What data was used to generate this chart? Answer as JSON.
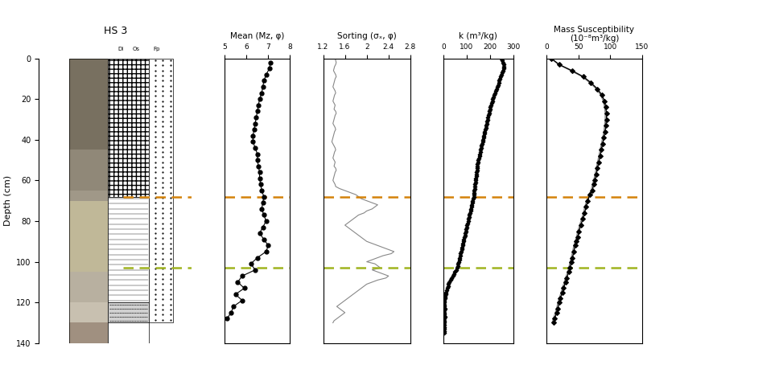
{
  "title": "HS 3",
  "depth_min": 0,
  "depth_max": 140,
  "orange_line_depth": 68,
  "green_line_depth": 103,
  "orange_color": "#D4820A",
  "green_color": "#A0B420",
  "mean_label": "Mean (Mz, φ)",
  "mean_xlim": [
    5,
    8
  ],
  "mean_xticks": [
    5,
    6,
    7,
    8
  ],
  "mean_data_depth": [
    2,
    5,
    8,
    11,
    14,
    17,
    20,
    23,
    26,
    29,
    32,
    35,
    38,
    41,
    44,
    47,
    50,
    53,
    56,
    59,
    62,
    65,
    68,
    71,
    74,
    77,
    80,
    83,
    86,
    89,
    92,
    95,
    98,
    101,
    104,
    107,
    110,
    113,
    116,
    119,
    122,
    125,
    128
  ],
  "mean_data_values": [
    7.1,
    7.05,
    6.9,
    6.8,
    6.75,
    6.7,
    6.6,
    6.55,
    6.5,
    6.45,
    6.4,
    6.35,
    6.3,
    6.3,
    6.4,
    6.5,
    6.5,
    6.55,
    6.6,
    6.6,
    6.65,
    6.7,
    6.8,
    6.75,
    6.7,
    6.8,
    6.9,
    6.75,
    6.6,
    6.8,
    7.0,
    6.9,
    6.5,
    6.2,
    6.4,
    5.8,
    5.6,
    5.9,
    5.5,
    5.8,
    5.4,
    5.3,
    5.1
  ],
  "sorting_label": "Sorting (σₓ, φ)",
  "sorting_xlim": [
    1.2,
    2.8
  ],
  "sorting_xticks": [
    1.6,
    2.0,
    2.4,
    2.8
  ],
  "sorting_xtick_labels": [
    "1.6",
    "2",
    "2.4",
    "2.8"
  ],
  "sorting_data_depth": [
    0,
    1,
    2,
    3,
    4,
    5,
    6,
    7,
    8,
    9,
    10,
    11,
    12,
    13,
    14,
    15,
    16,
    17,
    18,
    19,
    20,
    21,
    22,
    23,
    24,
    25,
    26,
    27,
    28,
    29,
    30,
    31,
    32,
    33,
    34,
    35,
    36,
    37,
    38,
    39,
    40,
    41,
    42,
    43,
    44,
    45,
    46,
    47,
    48,
    49,
    50,
    51,
    52,
    53,
    54,
    55,
    56,
    57,
    58,
    59,
    60,
    61,
    62,
    63,
    64,
    65,
    66,
    67,
    68,
    69,
    70,
    71,
    72,
    73,
    74,
    75,
    76,
    77,
    78,
    79,
    80,
    81,
    82,
    83,
    84,
    85,
    86,
    87,
    88,
    89,
    90,
    91,
    92,
    93,
    94,
    95,
    96,
    97,
    98,
    99,
    100,
    101,
    102,
    103,
    104,
    105,
    106,
    107,
    108,
    109,
    110,
    111,
    112,
    113,
    114,
    115,
    116,
    117,
    118,
    119,
    120,
    121,
    122,
    123,
    124,
    125,
    126,
    127,
    128,
    129,
    130
  ],
  "sorting_data_values": [
    1.42,
    1.43,
    1.44,
    1.43,
    1.41,
    1.4,
    1.39,
    1.41,
    1.43,
    1.44,
    1.42,
    1.41,
    1.4,
    1.39,
    1.38,
    1.4,
    1.42,
    1.43,
    1.41,
    1.4,
    1.39,
    1.38,
    1.4,
    1.42,
    1.41,
    1.4,
    1.43,
    1.44,
    1.42,
    1.41,
    1.4,
    1.39,
    1.38,
    1.4,
    1.42,
    1.43,
    1.41,
    1.4,
    1.39,
    1.38,
    1.37,
    1.36,
    1.38,
    1.4,
    1.42,
    1.43,
    1.41,
    1.4,
    1.39,
    1.38,
    1.4,
    1.42,
    1.41,
    1.4,
    1.43,
    1.44,
    1.42,
    1.41,
    1.4,
    1.39,
    1.38,
    1.4,
    1.42,
    1.43,
    1.5,
    1.6,
    1.7,
    1.8,
    1.85,
    1.9,
    2.0,
    2.1,
    2.2,
    2.15,
    2.1,
    2.0,
    1.95,
    1.85,
    1.8,
    1.75,
    1.7,
    1.65,
    1.6,
    1.65,
    1.7,
    1.75,
    1.8,
    1.85,
    1.9,
    1.95,
    2.0,
    2.1,
    2.2,
    2.3,
    2.4,
    2.5,
    2.45,
    2.3,
    2.2,
    2.1,
    2.0,
    2.15,
    2.2,
    2.25,
    2.1,
    2.2,
    2.3,
    2.4,
    2.35,
    2.2,
    2.1,
    2.0,
    1.95,
    1.9,
    1.85,
    1.8,
    1.75,
    1.7,
    1.65,
    1.6,
    1.55,
    1.5,
    1.45,
    1.5,
    1.55,
    1.6,
    1.55,
    1.5,
    1.45,
    1.4,
    1.38
  ],
  "k_label": "k (m³/kg)",
  "k_xlim": [
    0,
    300
  ],
  "k_xticks": [
    0,
    100,
    200,
    300
  ],
  "k_depth": [
    0,
    1,
    2,
    3,
    4,
    5,
    6,
    7,
    8,
    9,
    10,
    11,
    12,
    13,
    14,
    15,
    16,
    17,
    18,
    19,
    20,
    21,
    22,
    23,
    24,
    25,
    26,
    27,
    28,
    29,
    30,
    31,
    32,
    33,
    34,
    35,
    36,
    37,
    38,
    39,
    40,
    41,
    42,
    43,
    44,
    45,
    46,
    47,
    48,
    49,
    50,
    51,
    52,
    53,
    54,
    55,
    56,
    57,
    58,
    59,
    60,
    61,
    62,
    63,
    64,
    65,
    66,
    67,
    68,
    69,
    70,
    71,
    72,
    73,
    74,
    75,
    76,
    77,
    78,
    79,
    80,
    81,
    82,
    83,
    84,
    85,
    86,
    87,
    88,
    89,
    90,
    91,
    92,
    93,
    94,
    95,
    96,
    97,
    98,
    99,
    100,
    101,
    102,
    103,
    104,
    105,
    106,
    107,
    108,
    109,
    110,
    111,
    112,
    113,
    114,
    115,
    116,
    117,
    118,
    119,
    120,
    121,
    122,
    123,
    124,
    125,
    126,
    127,
    128,
    129,
    130,
    131,
    132,
    133,
    134,
    135
  ],
  "k_values": [
    250,
    252,
    255,
    258,
    260,
    258,
    255,
    252,
    248,
    245,
    242,
    240,
    238,
    235,
    232,
    228,
    225,
    222,
    218,
    215,
    212,
    210,
    208,
    205,
    202,
    200,
    198,
    196,
    194,
    192,
    190,
    188,
    186,
    184,
    182,
    180,
    178,
    176,
    174,
    172,
    170,
    168,
    166,
    164,
    162,
    160,
    158,
    156,
    154,
    152,
    150,
    148,
    147,
    146,
    145,
    144,
    143,
    142,
    141,
    140,
    138,
    137,
    136,
    135,
    134,
    133,
    132,
    131,
    130,
    128,
    126,
    124,
    122,
    120,
    118,
    116,
    114,
    112,
    110,
    108,
    106,
    104,
    102,
    100,
    98,
    96,
    94,
    92,
    90,
    88,
    86,
    84,
    82,
    80,
    78,
    76,
    74,
    72,
    70,
    68,
    66,
    64,
    62,
    60,
    55,
    50,
    45,
    40,
    35,
    30,
    25,
    22,
    20,
    18,
    15,
    12,
    10,
    8,
    6,
    5,
    4,
    4,
    5,
    6,
    5,
    4,
    5,
    6,
    5,
    4,
    4,
    3,
    3,
    3,
    3,
    3
  ],
  "mass_label": "Mass Susceptibility",
  "mass_sublabel": "(10⁻⁸m³/kg)",
  "mass_xlim": [
    0,
    150
  ],
  "mass_xticks": [
    0,
    50,
    100,
    150
  ],
  "mass_depth": [
    0,
    3,
    6,
    9,
    12,
    15,
    18,
    21,
    24,
    27,
    30,
    33,
    36,
    39,
    42,
    45,
    48,
    51,
    54,
    57,
    60,
    62,
    65,
    67,
    70,
    73,
    76,
    79,
    82,
    85,
    88,
    90,
    92,
    95,
    98,
    100,
    103,
    105,
    108,
    110,
    113,
    115,
    118,
    120,
    123,
    125,
    128,
    130
  ],
  "mass_values": [
    8,
    20,
    40,
    58,
    70,
    80,
    87,
    91,
    93,
    94,
    94,
    93,
    92,
    90,
    88,
    86,
    84,
    82,
    80,
    78,
    76,
    74,
    72,
    68,
    65,
    62,
    60,
    57,
    54,
    51,
    49,
    47,
    45,
    43,
    41,
    39,
    37,
    35,
    32,
    30,
    27,
    25,
    22,
    20,
    18,
    16,
    13,
    11
  ],
  "mass_depth2": [
    0,
    3,
    6,
    9,
    12,
    15,
    18,
    21,
    24,
    27,
    30,
    33,
    36,
    39,
    42,
    45,
    48,
    51,
    54,
    57,
    60,
    62,
    65,
    67,
    70,
    73,
    76,
    79,
    82,
    85,
    88,
    90,
    92,
    95,
    98,
    100,
    103,
    105,
    108,
    110,
    113,
    115,
    118,
    120,
    123,
    125,
    128,
    130
  ],
  "mass_values2": [
    7,
    19,
    38,
    56,
    68,
    78,
    85,
    89,
    91,
    92,
    92,
    91,
    90,
    88,
    86,
    84,
    82,
    80,
    78,
    76,
    74,
    72,
    70,
    66,
    63,
    60,
    58,
    55,
    52,
    49,
    47,
    45,
    43,
    41,
    39,
    37,
    35,
    33,
    30,
    28,
    25,
    23,
    20,
    18,
    16,
    14,
    11,
    9
  ],
  "background_color": "#ffffff",
  "yticks": [
    0,
    20,
    40,
    60,
    80,
    100,
    120,
    140
  ]
}
